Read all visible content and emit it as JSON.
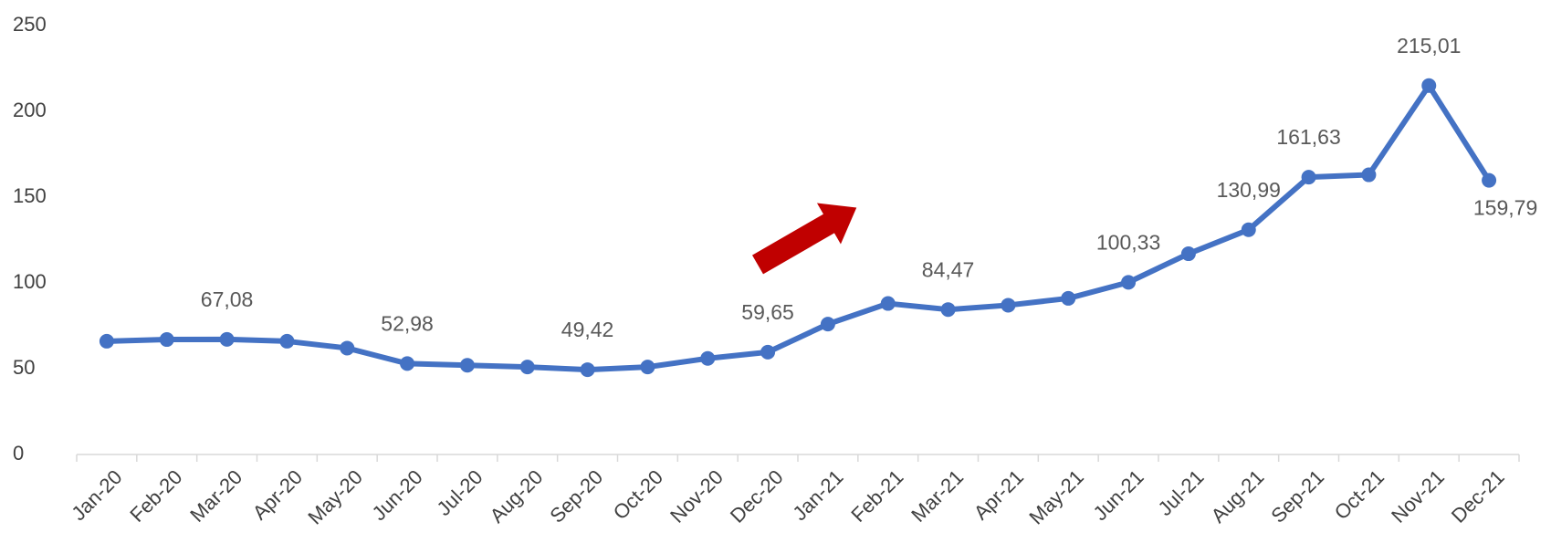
{
  "chart_data": {
    "type": "line",
    "categories": [
      "Jan-20",
      "Feb-20",
      "Mar-20",
      "Apr-20",
      "May-20",
      "Jun-20",
      "Jul-20",
      "Aug-20",
      "Sep-20",
      "Oct-20",
      "Nov-20",
      "Dec-20",
      "Jan-21",
      "Feb-21",
      "Mar-21",
      "Apr-21",
      "May-21",
      "Jun-21",
      "Jul-21",
      "Aug-21",
      "Sep-21",
      "Oct-21",
      "Nov-21",
      "Dec-21"
    ],
    "values": [
      66,
      67,
      67.08,
      66,
      62,
      52.98,
      52,
      51,
      49.42,
      51,
      56,
      59.65,
      76,
      88,
      84.47,
      87,
      91,
      100.33,
      117,
      130.99,
      161.63,
      163,
      215.01,
      159.79
    ],
    "value_labels": [
      null,
      null,
      "67,08",
      null,
      null,
      "52,98",
      null,
      null,
      "49,42",
      null,
      null,
      "59,65",
      null,
      null,
      "84,47",
      null,
      null,
      "100,33",
      null,
      "130,99",
      "161,63",
      null,
      "215,01",
      "159,79"
    ],
    "color": "#4472c4",
    "ylim": [
      0,
      250
    ],
    "yticks": [
      0,
      50,
      100,
      150,
      200,
      250
    ],
    "grid": false
  }
}
